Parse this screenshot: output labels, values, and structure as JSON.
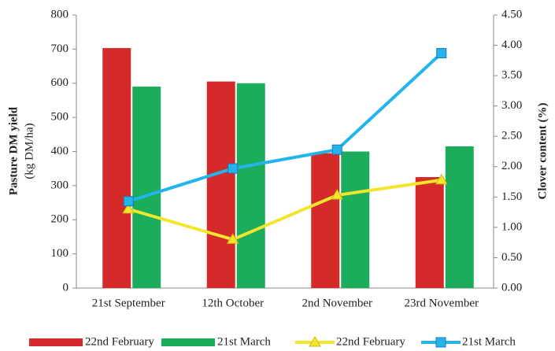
{
  "chart_data": {
    "type": "bar",
    "y_label": "Pasture DM yield",
    "y_label_units": "(kg DM/ha)",
    "y2_label": "Clover content (%)",
    "categories": [
      "21st September",
      "12th October",
      "2nd November",
      "23rd November"
    ],
    "series": [
      {
        "name": "22nd February",
        "type": "bar",
        "color": "#d42a2a",
        "values": [
          703,
          605,
          395,
          325
        ]
      },
      {
        "name": "21st March",
        "type": "bar",
        "color": "#1cad5c",
        "values": [
          590,
          600,
          400,
          415
        ]
      },
      {
        "name": "22nd February",
        "type": "line",
        "marker": "triangle",
        "axis": "y2",
        "color": "#f2e52c",
        "values": [
          1.3,
          0.8,
          1.53,
          1.78
        ]
      },
      {
        "name": "21st March",
        "type": "line",
        "marker": "square",
        "axis": "y2",
        "color": "#22b4ea",
        "values": [
          1.43,
          1.97,
          2.28,
          3.87
        ]
      }
    ],
    "ylim": [
      0,
      800
    ],
    "yticks": [
      0,
      100,
      200,
      300,
      400,
      500,
      600,
      700,
      800
    ],
    "y2lim": [
      0,
      4.5
    ],
    "y2ticks": [
      {
        "value": 0,
        "label": "0.00"
      },
      {
        "value": 0.5,
        "label": "0.50"
      },
      {
        "value": 1,
        "label": "1.00"
      },
      {
        "value": 1.5,
        "label": "1.50"
      },
      {
        "value": 2,
        "label": "2.00"
      },
      {
        "value": 2.5,
        "label": "2.50"
      },
      {
        "value": 3,
        "label": "3.00"
      },
      {
        "value": 3.5,
        "label": "3.50"
      },
      {
        "value": 4,
        "label": "4.00"
      },
      {
        "value": 4.5,
        "label": "4.50"
      }
    ],
    "grid": false,
    "legend": "bottom"
  }
}
